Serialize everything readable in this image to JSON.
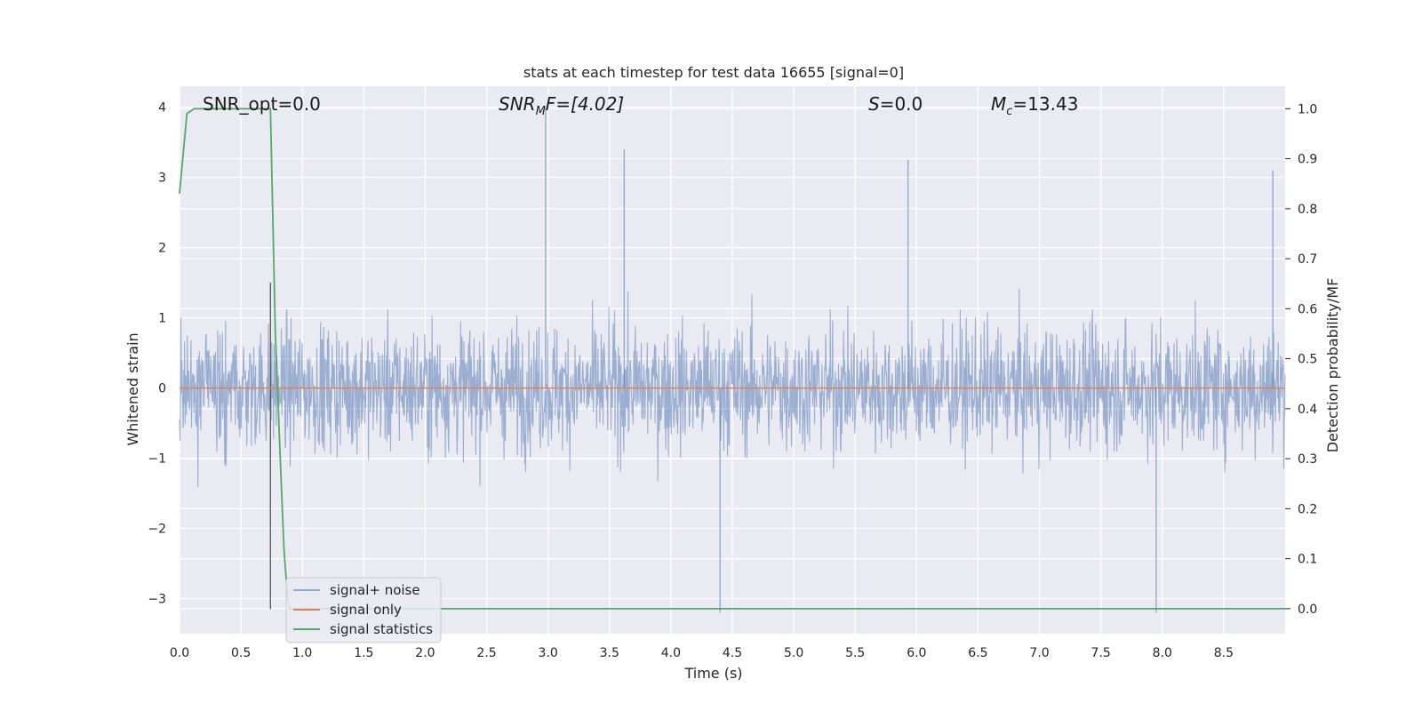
{
  "chart_data": {
    "type": "line",
    "title": "stats at each timestep for test data 16655 [signal=0]",
    "xlabel": "Time (s)",
    "ylabel": "Whitened strain",
    "y2label": "Detection probability/MF",
    "xlim": [
      0.0,
      9.0
    ],
    "ylim": [
      -3.5,
      4.3
    ],
    "y2lim": [
      -0.05,
      1.045
    ],
    "x_ticks": [
      "0.0",
      "0.5",
      "1.0",
      "1.5",
      "2.0",
      "2.5",
      "3.0",
      "3.5",
      "4.0",
      "4.5",
      "5.0",
      "5.5",
      "6.0",
      "6.5",
      "7.0",
      "7.5",
      "8.0",
      "8.5"
    ],
    "y_ticks": [
      "4",
      "3",
      "2",
      "1",
      "0",
      "−1",
      "−2",
      "−3"
    ],
    "y2_ticks": [
      "1.0",
      "0.9",
      "0.8",
      "0.7",
      "0.6",
      "0.5",
      "0.4",
      "0.3",
      "0.2",
      "0.1",
      "0.0"
    ],
    "grid": true,
    "legend_position": "lower-left",
    "colors": {
      "background": "#eaeaf2",
      "grid": "#ffffff",
      "noise": "#4c72b0",
      "signal": "#dd8452",
      "stats": "#55a868",
      "marker": "#555555"
    },
    "annotations": {
      "snr_opt": "SNR_opt=0.0",
      "snr_mf_prefix": "SNR",
      "snr_mf_sub": "M",
      "snr_mf_suffix": "F=[4.02]",
      "s_prefix": "S",
      "s_suffix": "=0.0",
      "mc_prefix": "M",
      "mc_sub": "c",
      "mc_suffix": "=13.43"
    },
    "series": [
      {
        "name": "signal+ noise",
        "description_range": [
          -3.2,
          4.0
        ],
        "notable_peaks": [
          {
            "x": 2.98,
            "y": 4.0
          },
          {
            "x": 3.62,
            "y": 3.4
          },
          {
            "x": 4.4,
            "y": -3.2
          },
          {
            "x": 5.93,
            "y": 3.25
          },
          {
            "x": 7.95,
            "y": -3.2
          },
          {
            "x": 8.9,
            "y": 3.1
          }
        ]
      },
      {
        "name": "signal only",
        "x": [
          0.0,
          9.0
        ],
        "y": [
          0.0,
          0.0
        ]
      },
      {
        "name": "signal statistics",
        "axis": "secondary",
        "x": [
          0.0,
          0.06,
          0.12,
          0.2,
          0.3,
          0.4,
          0.5,
          0.6,
          0.7,
          0.74,
          0.78,
          0.82,
          0.85,
          0.88,
          0.9,
          1.0,
          2.0,
          3.0,
          4.0,
          5.0,
          6.0,
          7.0,
          8.0,
          9.0
        ],
        "y": [
          0.83,
          0.99,
          1.0,
          1.0,
          1.0,
          1.0,
          1.0,
          1.0,
          1.0,
          1.0,
          0.55,
          0.3,
          0.12,
          0.02,
          0.0,
          0.0,
          0.0,
          0.0,
          0.0,
          0.0,
          0.0,
          0.0,
          0.0,
          0.0
        ]
      }
    ],
    "marker_line": {
      "x": 0.74,
      "y_from": -3.15,
      "y_to": 1.5
    }
  }
}
